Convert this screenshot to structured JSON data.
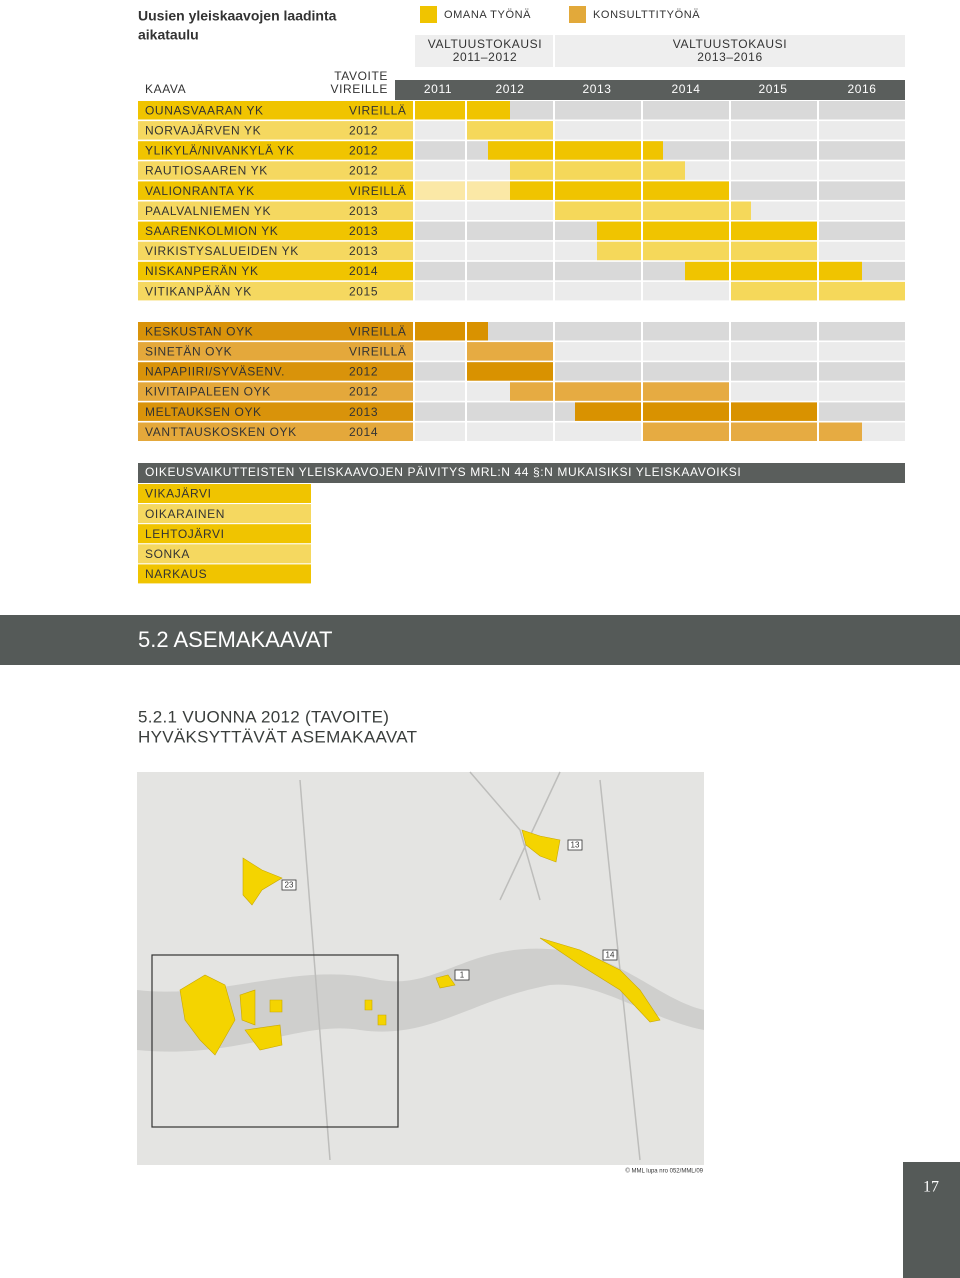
{
  "title": [
    "Uusien yleiskaavojen laadinta",
    "aikataulu"
  ],
  "legend": [
    "OMANA TYÖNÄ",
    "KONSULTTITYÖNÄ"
  ],
  "periods": [
    [
      "VALTUUSTOKAUSI",
      "2011–2012"
    ],
    [
      "VALTUUSTOKAUSI",
      "2013–2016"
    ]
  ],
  "header": {
    "kaava": "KAAVA",
    "target": [
      "TAVOITE",
      "VIREILLE"
    ],
    "years": [
      "2011",
      "2012",
      "2013",
      "2014",
      "2015",
      "2016"
    ]
  },
  "groups": [
    [
      {
        "name": "OUNASVAARAN YK",
        "target": "VIREILLÄ"
      },
      {
        "name": "NORVAJÄRVEN YK",
        "target": "2012"
      },
      {
        "name": "YLIKYLÄ/NIVANKYLÄ YK",
        "target": "2012"
      },
      {
        "name": "RAUTIOSAAREN YK",
        "target": "2012"
      },
      {
        "name": "VALIONRANTA YK",
        "target": "VIREILLÄ"
      },
      {
        "name": "PAALVALNIEMEN YK",
        "target": "2013"
      },
      {
        "name": "SAARENKOLMION YK",
        "target": "2013"
      },
      {
        "name": "VIRKISTYSALUEIDEN YK",
        "target": "2013"
      },
      {
        "name": "NISKANPERÄN YK",
        "target": "2014"
      },
      {
        "name": "VITIKANPÄÄN YK",
        "target": "2015"
      }
    ],
    [
      {
        "name": "KESKUSTAN OYK",
        "target": "VIREILLÄ"
      },
      {
        "name": "SINETÄN OYK",
        "target": "VIREILLÄ"
      },
      {
        "name": "NAPAPIIRI/SYVÄSENV.",
        "target": "2012"
      },
      {
        "name": "KIVITAIPALEEN OYK",
        "target": "2012"
      },
      {
        "name": "MELTAUKSEN OYK",
        "target": "2013"
      },
      {
        "name": "VANTTAUSKOSKEN OYK",
        "target": "2014"
      }
    ]
  ],
  "update": {
    "title": "OIKEUSVAIKUTTEISTEN YLEISKAAVOJEN PÄIVITYS MRL:N 44 §:N MUKAISIKSI YLEISKAAVOIKSI",
    "rows": [
      "VIKAJÄRVI",
      "OIKARAINEN",
      "LEHTOJÄRVI",
      "SONKA",
      "NARKAUS"
    ]
  },
  "section": "5.2 ASEMAKAAVAT",
  "subsection": [
    "5.2.1 VUONNA 2012 (TAVOITE)",
    "HYVÄKSYTTÄVÄT ASEMAKAAVAT"
  ],
  "map": {
    "labels": [
      "13",
      "23",
      "14",
      "1"
    ],
    "copyright": "© MML lupa nro 052/MML/09"
  },
  "page_number": "17"
}
